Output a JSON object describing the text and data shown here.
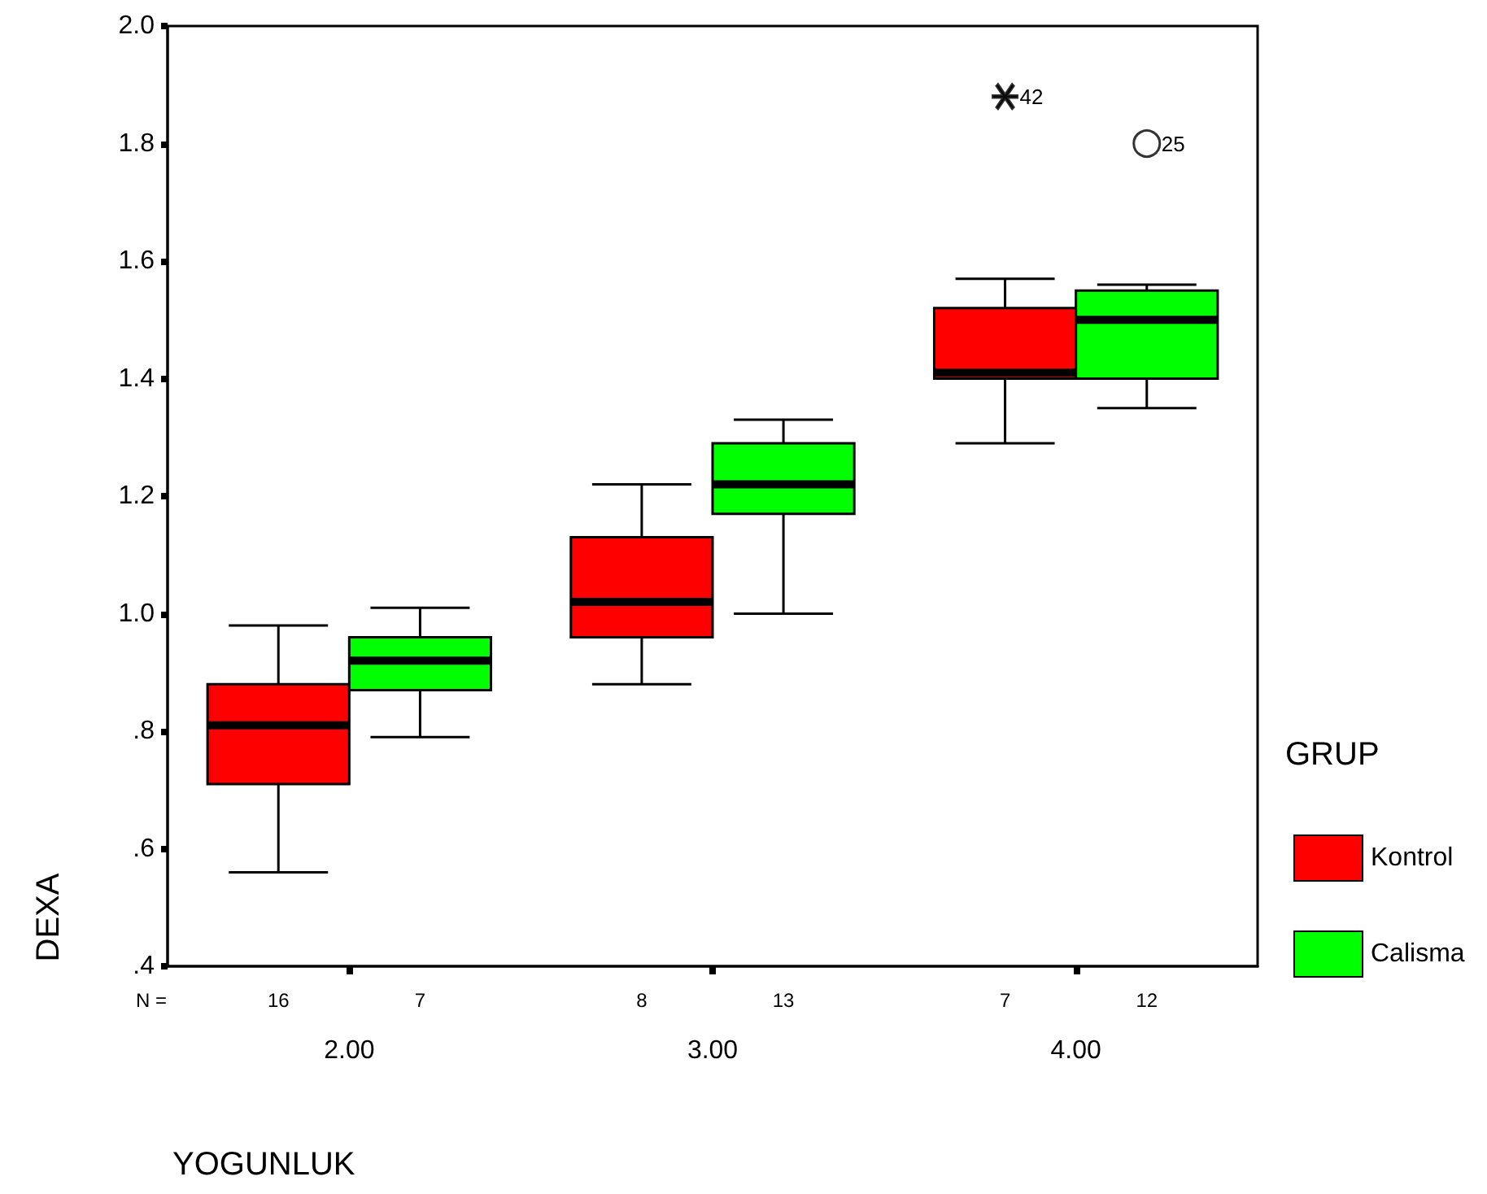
{
  "chart_data": {
    "type": "box",
    "xlabel": "YOGUNLUK",
    "ylabel": "DEXA",
    "legend_title": "GRUP",
    "legend": "right",
    "grid": false,
    "categories": [
      "2.00",
      "3.00",
      "4.00"
    ],
    "ylim": [
      0.4,
      2.0
    ],
    "yticks": [
      {
        "value": 0.4,
        "label": ".4"
      },
      {
        "value": 0.6,
        "label": ".6"
      },
      {
        "value": 0.8,
        "label": ".8"
      },
      {
        "value": 1.0,
        "label": "1.0"
      },
      {
        "value": 1.2,
        "label": "1.2"
      },
      {
        "value": 1.4,
        "label": "1.4"
      },
      {
        "value": 1.6,
        "label": "1.6"
      },
      {
        "value": 1.8,
        "label": "1.8"
      },
      {
        "value": 2.0,
        "label": "2.0"
      }
    ],
    "series": [
      {
        "name": "Kontrol",
        "color": "#ff0000",
        "marker": "cross",
        "boxes": [
          {
            "low": 0.56,
            "q1": 0.71,
            "median": 0.81,
            "q3": 0.88,
            "high": 0.98
          },
          {
            "low": 0.88,
            "q1": 0.96,
            "median": 1.02,
            "q3": 1.13,
            "high": 1.22
          },
          {
            "low": 1.29,
            "q1": 1.4,
            "median": 1.41,
            "q3": 1.52,
            "high": 1.57,
            "outliers": [
              1.88
            ]
          }
        ]
      },
      {
        "name": "Calisma",
        "color": "#00ff00",
        "marker": "circle",
        "boxes": [
          {
            "low": 0.79,
            "q1": 0.87,
            "median": 0.92,
            "q3": 0.96,
            "high": 1.01
          },
          {
            "low": 1.0,
            "q1": 1.17,
            "median": 1.22,
            "q3": 1.29,
            "high": 1.33
          },
          {
            "low": 1.35,
            "q1": 1.4,
            "median": 1.5,
            "q3": 1.55,
            "high": 1.56,
            "outliers": [
              1.8
            ]
          }
        ]
      }
    ],
    "annotations": [
      "N =",
      "16",
      "7",
      "8",
      "13",
      "7",
      "12",
      "42",
      "25"
    ]
  }
}
